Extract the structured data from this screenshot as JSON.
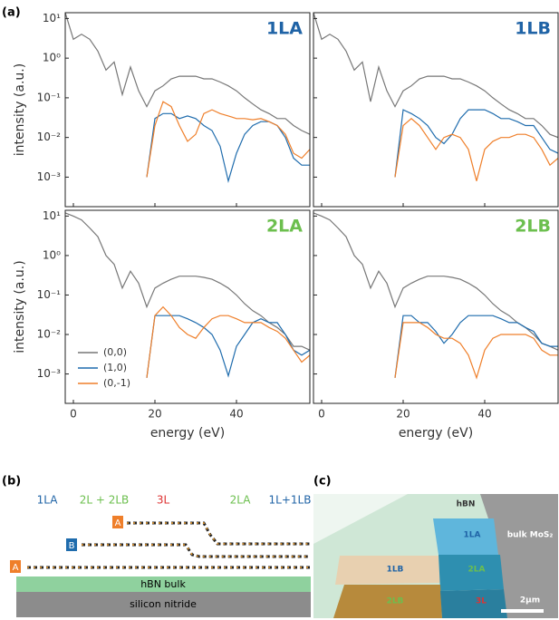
{
  "panel_labels": [
    "(a)",
    "(b)",
    "(c)"
  ],
  "chart_data": [
    {
      "type": "line",
      "annotation": "1LA",
      "annotation_color": "#1f63a6",
      "yscale": "log",
      "ylabel": "intensity (a.u.)",
      "x": [
        -2,
        0,
        2,
        4,
        6,
        8,
        10,
        12,
        14,
        16,
        18,
        20,
        22,
        24,
        26,
        28,
        30,
        32,
        34,
        36,
        38,
        40,
        42,
        44,
        46,
        48,
        50,
        52,
        54,
        56,
        58
      ],
      "xlim": [
        -2,
        58
      ],
      "xticks": [
        0,
        20,
        40
      ],
      "ylim": [
        0.00018,
        14
      ],
      "yticks": [
        {
          "value": 0.001,
          "label": "10⁻³"
        },
        {
          "value": 0.01,
          "label": "10⁻²"
        },
        {
          "value": 0.1,
          "label": "10⁻¹"
        },
        {
          "value": 1,
          "label": "10⁰"
        },
        {
          "value": 10,
          "label": "10¹"
        }
      ],
      "series": [
        {
          "color": "#777777",
          "values": [
            14,
            3,
            4,
            3,
            1.5,
            0.5,
            0.8,
            0.12,
            0.6,
            0.15,
            0.06,
            0.15,
            0.2,
            0.3,
            0.35,
            0.35,
            0.35,
            0.3,
            0.3,
            0.25,
            0.2,
            0.15,
            0.1,
            0.07,
            0.05,
            0.04,
            0.03,
            0.03,
            0.02,
            0.015,
            0.012
          ]
        },
        {
          "color": "#1f6cad",
          "values": [
            null,
            null,
            null,
            null,
            null,
            null,
            null,
            null,
            null,
            null,
            0.001,
            0.03,
            0.04,
            0.04,
            0.03,
            0.035,
            0.03,
            0.02,
            0.015,
            0.006,
            0.0008,
            0.004,
            0.012,
            0.02,
            0.025,
            0.025,
            0.02,
            0.01,
            0.003,
            0.002,
            0.002
          ]
        },
        {
          "color": "#ef7f2a",
          "values": [
            null,
            null,
            null,
            null,
            null,
            null,
            null,
            null,
            null,
            null,
            0.001,
            0.02,
            0.08,
            0.06,
            0.02,
            0.008,
            0.012,
            0.04,
            0.05,
            0.04,
            0.035,
            0.03,
            0.03,
            0.028,
            0.03,
            0.025,
            0.02,
            0.012,
            0.004,
            0.003,
            0.005
          ]
        }
      ]
    },
    {
      "type": "line",
      "annotation": "1LB",
      "annotation_color": "#1f63a6",
      "yscale": "log",
      "x": [
        -2,
        0,
        2,
        4,
        6,
        8,
        10,
        12,
        14,
        16,
        18,
        20,
        22,
        24,
        26,
        28,
        30,
        32,
        34,
        36,
        38,
        40,
        42,
        44,
        46,
        48,
        50,
        52,
        54,
        56,
        58
      ],
      "xlim": [
        -2,
        58
      ],
      "xticks": [
        0,
        20,
        40
      ],
      "ylim": [
        0.00018,
        14
      ],
      "yticks": [
        0.001,
        0.01,
        0.1,
        1,
        10
      ],
      "series": [
        {
          "color": "#777777",
          "values": [
            14,
            3,
            4,
            3,
            1.5,
            0.5,
            0.8,
            0.08,
            0.6,
            0.15,
            0.06,
            0.15,
            0.2,
            0.3,
            0.35,
            0.35,
            0.35,
            0.3,
            0.3,
            0.25,
            0.2,
            0.15,
            0.1,
            0.07,
            0.05,
            0.04,
            0.03,
            0.03,
            0.02,
            0.012,
            0.01
          ]
        },
        {
          "color": "#1f6cad",
          "values": [
            null,
            null,
            null,
            null,
            null,
            null,
            null,
            null,
            null,
            null,
            0.001,
            0.05,
            0.04,
            0.03,
            0.02,
            0.01,
            0.007,
            0.012,
            0.03,
            0.05,
            0.05,
            0.05,
            0.04,
            0.03,
            0.03,
            0.025,
            0.02,
            0.02,
            0.01,
            0.005,
            0.004
          ]
        },
        {
          "color": "#ef7f2a",
          "values": [
            null,
            null,
            null,
            null,
            null,
            null,
            null,
            null,
            null,
            null,
            0.001,
            0.02,
            0.03,
            0.02,
            0.01,
            0.005,
            0.01,
            0.012,
            0.01,
            0.005,
            0.0008,
            0.005,
            0.008,
            0.01,
            0.01,
            0.012,
            0.012,
            0.01,
            0.005,
            0.002,
            0.003
          ]
        }
      ]
    },
    {
      "type": "line",
      "annotation": "2LA",
      "annotation_color": "#6cbf4e",
      "yscale": "log",
      "ylabel": "intensity (a.u.)",
      "xlabel": "energy (eV)",
      "legend": "lower left",
      "x": [
        -2,
        0,
        2,
        4,
        6,
        8,
        10,
        12,
        14,
        16,
        18,
        20,
        22,
        24,
        26,
        28,
        30,
        32,
        34,
        36,
        38,
        40,
        42,
        44,
        46,
        48,
        50,
        52,
        54,
        56,
        58
      ],
      "xlim": [
        -2,
        58
      ],
      "xticks": [
        0,
        20,
        40
      ],
      "ylim": [
        0.00018,
        14
      ],
      "yticks": [
        {
          "value": 0.001,
          "label": "10⁻³"
        },
        {
          "value": 0.01,
          "label": "10⁻²"
        },
        {
          "value": 0.1,
          "label": "10⁻¹"
        },
        {
          "value": 1,
          "label": "10⁰"
        },
        {
          "value": 10,
          "label": "10¹"
        }
      ],
      "series": [
        {
          "name": "(0,0)",
          "color": "#777777",
          "values": [
            12,
            10,
            8,
            5,
            3,
            1,
            0.6,
            0.15,
            0.4,
            0.2,
            0.05,
            0.15,
            0.2,
            0.25,
            0.3,
            0.3,
            0.3,
            0.28,
            0.25,
            0.2,
            0.15,
            0.1,
            0.06,
            0.04,
            0.03,
            0.02,
            0.015,
            0.01,
            0.005,
            0.005,
            0.004
          ]
        },
        {
          "name": "(1,0)",
          "color": "#1f6cad",
          "values": [
            null,
            null,
            null,
            null,
            null,
            null,
            null,
            null,
            null,
            null,
            0.0008,
            0.03,
            0.03,
            0.03,
            0.03,
            0.025,
            0.02,
            0.015,
            0.01,
            0.004,
            0.0009,
            0.005,
            0.01,
            0.02,
            0.025,
            0.02,
            0.02,
            0.01,
            0.004,
            0.003,
            0.004
          ]
        },
        {
          "name": "(0,-1)",
          "color": "#ef7f2a",
          "values": [
            null,
            null,
            null,
            null,
            null,
            null,
            null,
            null,
            null,
            null,
            0.0008,
            0.03,
            0.05,
            0.03,
            0.015,
            0.01,
            0.008,
            0.015,
            0.025,
            0.03,
            0.03,
            0.025,
            0.02,
            0.02,
            0.02,
            0.015,
            0.012,
            0.008,
            0.004,
            0.002,
            0.003
          ]
        }
      ]
    },
    {
      "type": "line",
      "annotation": "2LB",
      "annotation_color": "#6cbf4e",
      "yscale": "log",
      "xlabel": "energy (eV)",
      "x": [
        -2,
        0,
        2,
        4,
        6,
        8,
        10,
        12,
        14,
        16,
        18,
        20,
        22,
        24,
        26,
        28,
        30,
        32,
        34,
        36,
        38,
        40,
        42,
        44,
        46,
        48,
        50,
        52,
        54,
        56,
        58
      ],
      "xlim": [
        -2,
        58
      ],
      "xticks": [
        0,
        20,
        40
      ],
      "ylim": [
        0.00018,
        14
      ],
      "yticks": [
        0.001,
        0.01,
        0.1,
        1,
        10
      ],
      "series": [
        {
          "color": "#777777",
          "values": [
            12,
            10,
            8,
            5,
            3,
            1,
            0.6,
            0.15,
            0.4,
            0.2,
            0.05,
            0.15,
            0.2,
            0.25,
            0.3,
            0.3,
            0.3,
            0.28,
            0.25,
            0.2,
            0.15,
            0.1,
            0.06,
            0.04,
            0.03,
            0.02,
            0.015,
            0.01,
            0.006,
            0.005,
            0.004
          ]
        },
        {
          "color": "#1f6cad",
          "values": [
            null,
            null,
            null,
            null,
            null,
            null,
            null,
            null,
            null,
            null,
            0.0008,
            0.03,
            0.03,
            0.02,
            0.02,
            0.012,
            0.006,
            0.01,
            0.02,
            0.03,
            0.03,
            0.03,
            0.03,
            0.025,
            0.02,
            0.02,
            0.015,
            0.012,
            0.006,
            0.005,
            0.005
          ]
        },
        {
          "color": "#ef7f2a",
          "values": [
            null,
            null,
            null,
            null,
            null,
            null,
            null,
            null,
            null,
            null,
            0.0008,
            0.02,
            0.02,
            0.02,
            0.015,
            0.01,
            0.008,
            0.008,
            0.006,
            0.003,
            0.0008,
            0.004,
            0.008,
            0.01,
            0.01,
            0.01,
            0.01,
            0.008,
            0.004,
            0.003,
            0.003
          ]
        }
      ]
    }
  ],
  "diagram": {
    "regions": [
      "1LA",
      "2L + 2LB",
      "3L",
      "2LA",
      "1L+1LB"
    ],
    "layers": [
      "A",
      "B",
      "A"
    ],
    "substrate": [
      "hBN bulk",
      "silicon nitride"
    ]
  },
  "micrograph": {
    "labels": [
      "hBN",
      "bulk MoS₂",
      "1LA",
      "1LB",
      "2LA",
      "2LB",
      "3L"
    ],
    "scale_bar": "2µm"
  }
}
